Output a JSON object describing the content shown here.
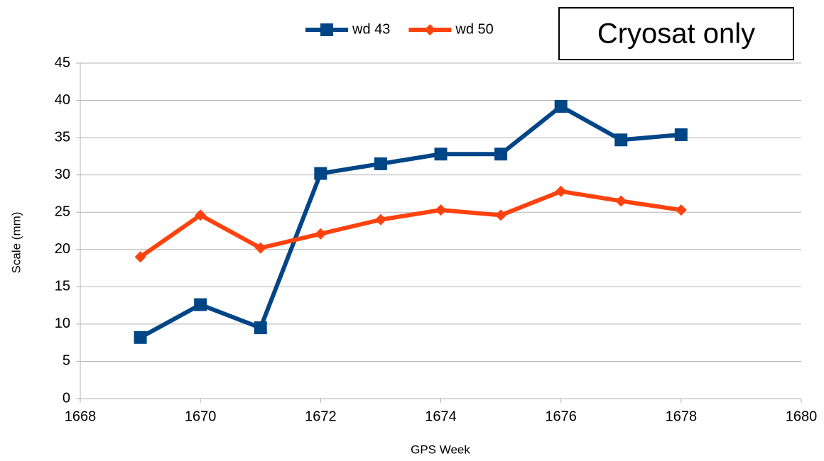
{
  "chart_data": {
    "type": "line",
    "x": [
      1669,
      1670,
      1671,
      1672,
      1673,
      1674,
      1675,
      1676,
      1677,
      1678
    ],
    "series": [
      {
        "name": "wd 43",
        "color": "#004586",
        "marker": "square",
        "values": [
          8.2,
          12.6,
          9.5,
          30.2,
          31.5,
          32.8,
          32.8,
          39.2,
          34.7,
          35.4
        ]
      },
      {
        "name": "wd 50",
        "color": "#ff420e",
        "marker": "diamond",
        "values": [
          19.0,
          24.6,
          20.2,
          22.1,
          24.0,
          25.3,
          24.6,
          27.8,
          26.5,
          25.3
        ]
      }
    ],
    "xlabel": "GPS Week",
    "ylabel": "Scale (mm)",
    "annotation": "Cryosat only",
    "xlim": [
      1668,
      1680
    ],
    "xticks": [
      1668,
      1670,
      1672,
      1674,
      1676,
      1678,
      1680
    ],
    "ylim": [
      0,
      45
    ],
    "yticks": [
      0,
      5,
      10,
      15,
      20,
      25,
      30,
      35,
      40,
      45
    ],
    "grid": true,
    "legend": "top"
  }
}
